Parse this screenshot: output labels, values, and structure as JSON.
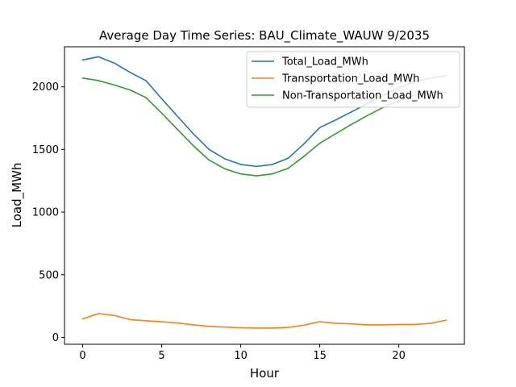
{
  "chart_data": {
    "type": "line",
    "title": "Average Day Time Series: BAU_Climate_WAUW 9/2035",
    "xlabel": "Hour",
    "ylabel": "Load_MWh",
    "xlim": [
      -1.15,
      24.15
    ],
    "ylim": [
      -55,
      2320
    ],
    "xticks": [
      0,
      5,
      10,
      15,
      20
    ],
    "yticks": [
      0,
      500,
      1000,
      1500,
      2000
    ],
    "grid": false,
    "legend_position": "top-right",
    "x": [
      0,
      1,
      2,
      3,
      4,
      5,
      6,
      7,
      8,
      9,
      10,
      11,
      12,
      13,
      14,
      15,
      16,
      17,
      18,
      19,
      20,
      21,
      22,
      23
    ],
    "series": [
      {
        "name": "Total_Load_MWh",
        "color": "#1f77b4",
        "values": [
          2215,
          2240,
          2190,
          2115,
          2050,
          1905,
          1765,
          1625,
          1500,
          1425,
          1380,
          1365,
          1380,
          1430,
          1545,
          1675,
          1735,
          1800,
          1865,
          1930,
          1995,
          2040,
          2070,
          2090
        ]
      },
      {
        "name": "Transportation_Load_MWh",
        "color": "#ff7f0e",
        "values": [
          148,
          190,
          175,
          142,
          133,
          125,
          115,
          100,
          88,
          82,
          77,
          74,
          74,
          80,
          98,
          125,
          113,
          108,
          100,
          100,
          103,
          103,
          112,
          137
        ]
      },
      {
        "name": "Non-Transportation_Load_MWh",
        "color": "#2ca02c",
        "values": [
          2070,
          2050,
          2015,
          1975,
          1915,
          1790,
          1660,
          1530,
          1415,
          1345,
          1305,
          1290,
          1305,
          1350,
          1445,
          1550,
          1625,
          1700,
          1770,
          1835,
          1890,
          1935,
          1960,
          1955
        ]
      }
    ]
  }
}
